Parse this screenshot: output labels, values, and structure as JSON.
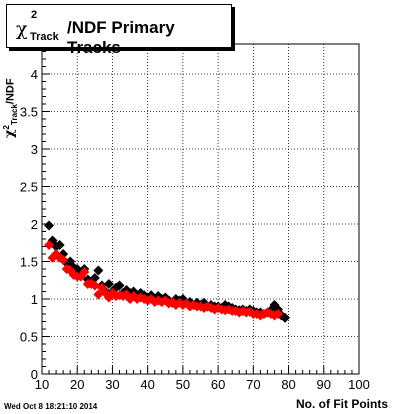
{
  "chart_data": {
    "type": "scatter",
    "title_symbol": "χ",
    "title_sup": "2",
    "title_sub": "Track",
    "title_main": "/NDF Primary Tracks",
    "ylabel_symbol": "χ",
    "ylabel_sup": "2",
    "ylabel_sub": "Track",
    "ylabel_rest": "/NDF",
    "xlabel": "No. of Fit Points",
    "xlim": [
      10,
      100
    ],
    "ylim": [
      0,
      4.4
    ],
    "xticks": [
      "10",
      "20",
      "30",
      "40",
      "50",
      "60",
      "70",
      "80",
      "90",
      "100"
    ],
    "yticks": [
      "0",
      "0.5",
      "1",
      "1.5",
      "2",
      "2.5",
      "3",
      "3.5",
      "4"
    ],
    "grid": true,
    "legend": "none",
    "series": [
      {
        "color": "#000000",
        "x": [
          12,
          13,
          14,
          15,
          16,
          17,
          18,
          19,
          20,
          21,
          22,
          23,
          24,
          25,
          26,
          27,
          28,
          29,
          30,
          31,
          32,
          33,
          34,
          35,
          36,
          37,
          38,
          39,
          40,
          41,
          42,
          43,
          44,
          45,
          46,
          47,
          48,
          49,
          50,
          51,
          52,
          53,
          54,
          55,
          56,
          57,
          58,
          59,
          60,
          61,
          62,
          63,
          64,
          65,
          66,
          67,
          68,
          69,
          70,
          71,
          72,
          73,
          74,
          75,
          76,
          77,
          78,
          79
        ],
        "y": [
          1.98,
          1.78,
          1.7,
          1.72,
          1.6,
          1.48,
          1.5,
          1.42,
          1.4,
          1.32,
          1.4,
          1.26,
          1.22,
          1.28,
          1.38,
          1.18,
          1.1,
          1.2,
          1.1,
          1.15,
          1.18,
          1.08,
          1.12,
          1.08,
          1.1,
          1.05,
          1.08,
          1.05,
          1.02,
          1.05,
          1.0,
          1.04,
          1.0,
          1.02,
          0.98,
          0.95,
          1.0,
          0.98,
          1.0,
          0.95,
          0.96,
          0.92,
          0.95,
          0.92,
          0.95,
          0.9,
          0.92,
          0.9,
          0.9,
          0.88,
          0.92,
          0.9,
          0.88,
          0.86,
          0.85,
          0.86,
          0.84,
          0.86,
          0.84,
          0.82,
          0.82,
          0.8,
          0.82,
          0.85,
          0.92,
          0.86,
          0.78,
          0.75
        ]
      },
      {
        "color": "#ff0000",
        "x": [
          12,
          13,
          14,
          15,
          16,
          17,
          18,
          19,
          20,
          21,
          22,
          23,
          24,
          25,
          26,
          27,
          28,
          29,
          30,
          31,
          32,
          33,
          34,
          35,
          36,
          37,
          38,
          39,
          40,
          41,
          42,
          43,
          44,
          45,
          46,
          47,
          48,
          49,
          50,
          51,
          52,
          53,
          54,
          55,
          56,
          57,
          58,
          59,
          60,
          61,
          62,
          63,
          64,
          65,
          66,
          67,
          68,
          69,
          70,
          71,
          72,
          73,
          74,
          75,
          76,
          77
        ],
        "y": [
          1.72,
          1.55,
          1.6,
          1.55,
          1.52,
          1.4,
          1.38,
          1.32,
          1.3,
          1.3,
          1.36,
          1.2,
          1.2,
          1.18,
          1.06,
          1.15,
          1.08,
          1.02,
          1.08,
          1.04,
          1.05,
          1.04,
          1.06,
          1.0,
          1.04,
          1.0,
          1.02,
          1.0,
          0.98,
          1.0,
          0.96,
          0.98,
          0.96,
          0.98,
          0.94,
          0.96,
          0.92,
          0.95,
          0.92,
          0.94,
          0.9,
          0.92,
          0.9,
          0.9,
          0.88,
          0.9,
          0.88,
          0.86,
          0.88,
          0.86,
          0.85,
          0.86,
          0.84,
          0.84,
          0.82,
          0.84,
          0.82,
          0.83,
          0.8,
          0.8,
          0.78,
          0.8,
          0.82,
          0.8,
          0.78,
          0.8
        ]
      }
    ]
  },
  "footer": {
    "timestamp": "Wed Oct  8 18:21:10 2014"
  }
}
